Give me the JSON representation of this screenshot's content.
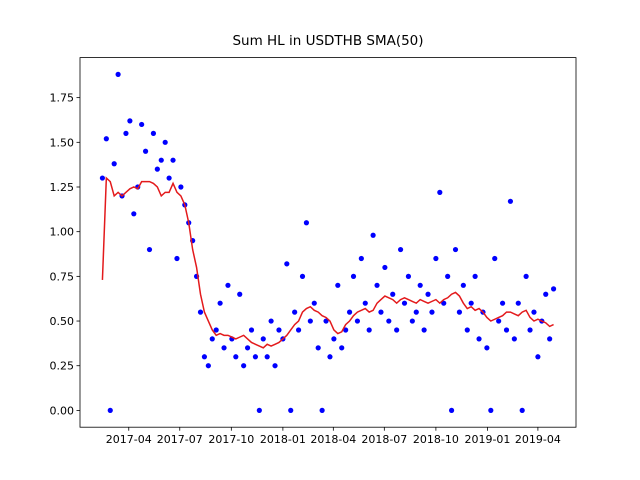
{
  "chart_data": {
    "type": "scatter",
    "title": "Sum HL in USDTHB SMA(50)",
    "x": [
      "2017-02-13",
      "2017-02-20",
      "2017-02-27",
      "2017-03-06",
      "2017-03-13",
      "2017-03-20",
      "2017-03-27",
      "2017-04-03",
      "2017-04-10",
      "2017-04-17",
      "2017-04-24",
      "2017-05-01",
      "2017-05-08",
      "2017-05-15",
      "2017-05-22",
      "2017-05-29",
      "2017-06-05",
      "2017-06-12",
      "2017-06-19",
      "2017-06-26",
      "2017-07-03",
      "2017-07-10",
      "2017-07-17",
      "2017-07-24",
      "2017-07-31",
      "2017-08-07",
      "2017-08-14",
      "2017-08-21",
      "2017-08-28",
      "2017-09-04",
      "2017-09-11",
      "2017-09-18",
      "2017-09-25",
      "2017-10-02",
      "2017-10-09",
      "2017-10-16",
      "2017-10-23",
      "2017-10-30",
      "2017-11-06",
      "2017-11-13",
      "2017-11-20",
      "2017-11-27",
      "2017-12-04",
      "2017-12-11",
      "2017-12-18",
      "2017-12-25",
      "2018-01-01",
      "2018-01-08",
      "2018-01-15",
      "2018-01-22",
      "2018-01-29",
      "2018-02-05",
      "2018-02-12",
      "2018-02-19",
      "2018-02-26",
      "2018-03-05",
      "2018-03-12",
      "2018-03-19",
      "2018-03-26",
      "2018-04-02",
      "2018-04-09",
      "2018-04-16",
      "2018-04-23",
      "2018-04-30",
      "2018-05-07",
      "2018-05-14",
      "2018-05-21",
      "2018-05-28",
      "2018-06-04",
      "2018-06-11",
      "2018-06-18",
      "2018-06-25",
      "2018-07-02",
      "2018-07-09",
      "2018-07-16",
      "2018-07-23",
      "2018-07-30",
      "2018-08-06",
      "2018-08-13",
      "2018-08-20",
      "2018-08-27",
      "2018-09-03",
      "2018-09-10",
      "2018-09-17",
      "2018-09-24",
      "2018-10-01",
      "2018-10-08",
      "2018-10-15",
      "2018-10-22",
      "2018-10-29",
      "2018-11-05",
      "2018-11-12",
      "2018-11-19",
      "2018-11-26",
      "2018-12-03",
      "2018-12-10",
      "2018-12-17",
      "2018-12-24",
      "2018-12-31",
      "2019-01-07",
      "2019-01-14",
      "2019-01-21",
      "2019-01-28",
      "2019-02-04",
      "2019-02-11",
      "2019-02-18",
      "2019-02-25",
      "2019-03-04",
      "2019-03-11",
      "2019-03-18",
      "2019-03-25",
      "2019-04-01",
      "2019-04-08",
      "2019-04-15",
      "2019-04-22",
      "2019-04-29"
    ],
    "series": [
      {
        "type": "scatter",
        "color": "#0000ff",
        "values": [
          1.3,
          1.52,
          0.0,
          1.38,
          1.88,
          1.2,
          1.55,
          1.62,
          1.1,
          1.25,
          1.6,
          1.45,
          0.9,
          1.55,
          1.35,
          1.4,
          1.5,
          1.3,
          1.4,
          0.85,
          1.25,
          1.15,
          1.05,
          0.95,
          0.75,
          0.55,
          0.3,
          0.25,
          0.4,
          0.45,
          0.6,
          0.35,
          0.7,
          0.4,
          0.3,
          0.65,
          0.25,
          0.35,
          0.45,
          0.3,
          0.0,
          0.4,
          0.3,
          0.5,
          0.25,
          0.45,
          0.4,
          0.82,
          0.0,
          0.55,
          0.45,
          0.75,
          1.05,
          0.5,
          0.6,
          0.35,
          0.0,
          0.5,
          0.3,
          0.4,
          0.7,
          0.35,
          0.45,
          0.55,
          0.75,
          0.5,
          0.85,
          0.6,
          0.45,
          0.98,
          0.7,
          0.55,
          0.8,
          0.5,
          0.65,
          0.45,
          0.9,
          0.6,
          0.75,
          0.5,
          0.55,
          0.7,
          0.45,
          0.65,
          0.55,
          0.85,
          1.22,
          0.6,
          0.75,
          0.0,
          0.9,
          0.55,
          0.7,
          0.45,
          0.6,
          0.75,
          0.4,
          0.55,
          0.35,
          0.0,
          0.85,
          0.5,
          0.6,
          0.45,
          1.17,
          0.4,
          0.6,
          0.0,
          0.75,
          0.45,
          0.55,
          0.3,
          0.5,
          0.65,
          0.4,
          0.68
        ]
      },
      {
        "type": "line",
        "color": "#e31a1c",
        "values": [
          0.73,
          1.3,
          1.28,
          1.2,
          1.22,
          1.2,
          1.22,
          1.24,
          1.25,
          1.24,
          1.28,
          1.28,
          1.28,
          1.27,
          1.25,
          1.2,
          1.22,
          1.22,
          1.27,
          1.22,
          1.2,
          1.15,
          1.05,
          0.9,
          0.8,
          0.65,
          0.55,
          0.5,
          0.45,
          0.42,
          0.43,
          0.42,
          0.42,
          0.41,
          0.4,
          0.41,
          0.42,
          0.4,
          0.38,
          0.37,
          0.36,
          0.35,
          0.37,
          0.36,
          0.37,
          0.38,
          0.4,
          0.42,
          0.45,
          0.48,
          0.5,
          0.55,
          0.57,
          0.58,
          0.56,
          0.55,
          0.53,
          0.52,
          0.5,
          0.45,
          0.43,
          0.44,
          0.48,
          0.5,
          0.53,
          0.55,
          0.56,
          0.57,
          0.55,
          0.56,
          0.6,
          0.62,
          0.64,
          0.63,
          0.62,
          0.6,
          0.62,
          0.63,
          0.62,
          0.61,
          0.6,
          0.62,
          0.61,
          0.6,
          0.61,
          0.62,
          0.6,
          0.62,
          0.63,
          0.65,
          0.66,
          0.64,
          0.6,
          0.57,
          0.58,
          0.56,
          0.57,
          0.55,
          0.52,
          0.5,
          0.51,
          0.52,
          0.53,
          0.55,
          0.55,
          0.54,
          0.53,
          0.55,
          0.56,
          0.52,
          0.5,
          0.51,
          0.5,
          0.49,
          0.47,
          0.48
        ]
      }
    ],
    "xlim": [
      "2017-01-04",
      "2019-06-08"
    ],
    "xticks": [
      {
        "value": "2017-04-01",
        "label": "2017-04"
      },
      {
        "value": "2017-07-01",
        "label": "2017-07"
      },
      {
        "value": "2017-10-01",
        "label": "2017-10"
      },
      {
        "value": "2018-01-01",
        "label": "2018-01"
      },
      {
        "value": "2018-04-01",
        "label": "2018-04"
      },
      {
        "value": "2018-07-01",
        "label": "2018-07"
      },
      {
        "value": "2018-10-01",
        "label": "2018-10"
      },
      {
        "value": "2019-01-01",
        "label": "2019-01"
      },
      {
        "value": "2019-04-01",
        "label": "2019-04"
      }
    ],
    "ylim": [
      -0.094,
      1.974
    ],
    "yticks": [
      {
        "value": 0,
        "label": "0.00"
      },
      {
        "value": 0.25,
        "label": "0.25"
      },
      {
        "value": 0.5,
        "label": "0.50"
      },
      {
        "value": 0.75,
        "label": "0.75"
      },
      {
        "value": 1,
        "label": "1.00"
      },
      {
        "value": 1.25,
        "label": "1.25"
      },
      {
        "value": 1.5,
        "label": "1.50"
      },
      {
        "value": 1.75,
        "label": "1.75"
      }
    ]
  }
}
